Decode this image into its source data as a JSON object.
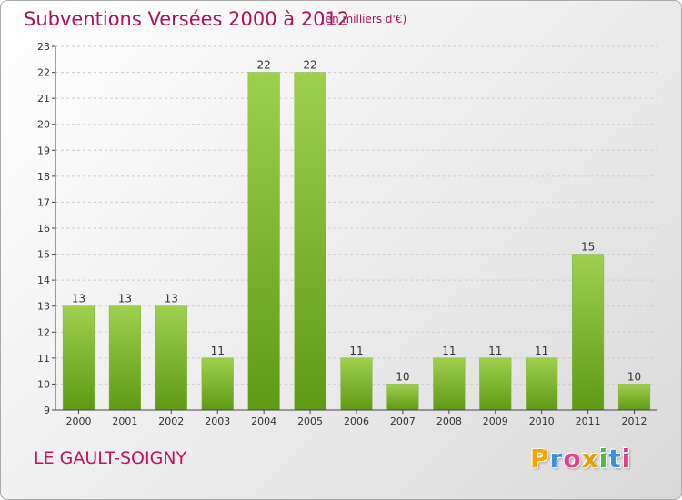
{
  "header": {
    "title": "Subventions Versées 2000 à 2012",
    "unit": "(en milliers d'€)"
  },
  "footer": {
    "commune": "LE GAULT-SOIGNY",
    "logo": [
      "P",
      "r",
      "o",
      "x",
      "i",
      "t",
      "i"
    ],
    "logo_colors": [
      "#f5a500",
      "#3b8fd9",
      "#e83e8c",
      "#e8a000",
      "#4cb848",
      "#3b8fd9",
      "#e83e8c"
    ]
  },
  "colors": {
    "bar_top": "#9ed04e",
    "bar_bottom": "#5e9a16",
    "grid": "#cccccc"
  },
  "chart_data": {
    "type": "bar",
    "categories": [
      "2000",
      "2001",
      "2002",
      "2003",
      "2004",
      "2005",
      "2006",
      "2007",
      "2008",
      "2009",
      "2010",
      "2011",
      "2012"
    ],
    "values": [
      13,
      13,
      13,
      11,
      22,
      22,
      11,
      10,
      11,
      11,
      11,
      15,
      10
    ],
    "ylim": [
      9,
      23
    ],
    "yticks": [
      9,
      10,
      11,
      12,
      13,
      14,
      15,
      16,
      17,
      18,
      19,
      20,
      21,
      22,
      23
    ],
    "title": "Subventions Versées 2000 à 2012",
    "xlabel": "",
    "ylabel": "",
    "grid": true
  }
}
